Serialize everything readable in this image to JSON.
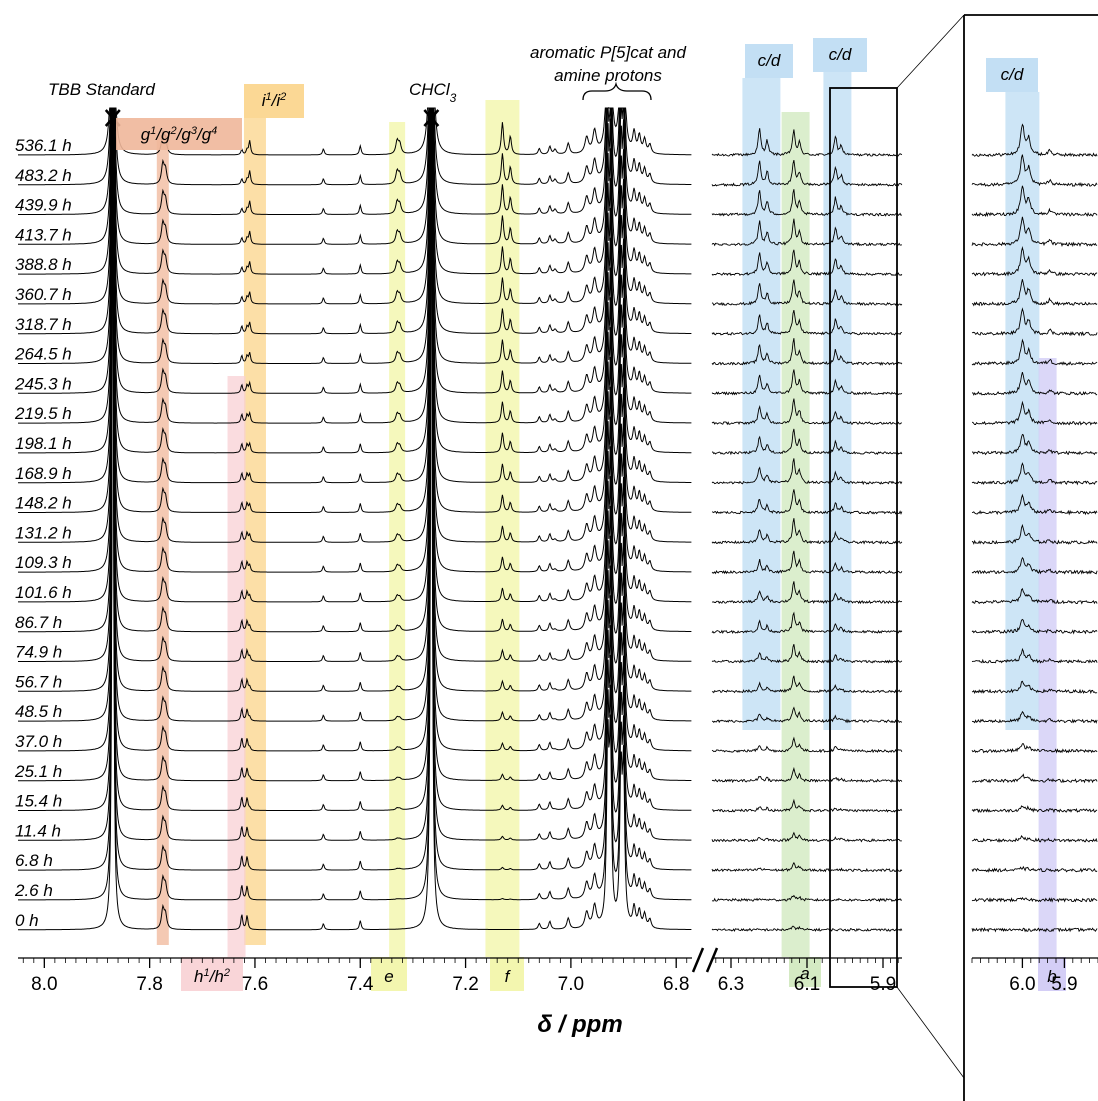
{
  "chart_data": {
    "type": "line",
    "chart_kind": "stacked 1H NMR spectra",
    "xlabel": "δ / ppm",
    "times": [
      "536.1 h",
      "483.2 h",
      "439.9 h",
      "413.7 h",
      "388.8 h",
      "360.7 h",
      "318.7 h",
      "264.5 h",
      "245.3 h",
      "219.5 h",
      "198.1 h",
      "168.9 h",
      "148.2 h",
      "131.2 h",
      "109.3 h",
      "101.6 h",
      "86.7 h",
      "74.9 h",
      "56.7 h",
      "48.5 h",
      "37.0 h",
      "25.1 h",
      "15.4 h",
      "11.4 h",
      "6.8 h",
      "2.6 h",
      "0 h"
    ],
    "panels": [
      {
        "name": "main",
        "xlim": [
          8.05,
          6.77
        ],
        "ticks": [
          8.0,
          7.8,
          7.6,
          7.4,
          7.2,
          7.0,
          6.8
        ],
        "tick_labels": [
          "8.0",
          "7.8",
          "7.6",
          "7.4",
          "7.2",
          "7.0",
          "6.8"
        ]
      },
      {
        "name": "middle",
        "xlim": [
          6.35,
          5.85
        ],
        "ticks": [
          6.3,
          6.1,
          5.9
        ],
        "tick_labels": [
          "6.3",
          "6.1",
          "5.9"
        ]
      },
      {
        "name": "zoom",
        "xlim": [
          6.12,
          5.82
        ],
        "ticks": [
          6.0,
          5.9
        ],
        "tick_labels": [
          "6.0",
          "5.9"
        ]
      }
    ],
    "annotations": [
      {
        "text": "TBB Standard",
        "ppm": 7.87
      },
      {
        "text": "CHCl3",
        "ppm": 7.265
      },
      {
        "text": "aromatic P[5]cat and amine protons",
        "ppm": 6.92
      }
    ],
    "peak_groups": [
      {
        "label": "g1/g2/g3/g4",
        "ppm": 7.775,
        "color": "#f0b79a",
        "panel": "main"
      },
      {
        "label": "i1/i2",
        "ppm": 7.6,
        "color": "#fbd48a",
        "panel": "main"
      },
      {
        "label": "h1/h2",
        "ppm": 7.635,
        "color": "#f8d0d4",
        "panel": "main"
      },
      {
        "label": "e",
        "ppm": 7.33,
        "color": "#f2f5a6",
        "panel": "main"
      },
      {
        "label": "f",
        "ppm": 7.13,
        "color": "#f2f5a6",
        "panel": "main"
      },
      {
        "label": "c/d",
        "ppm": 6.22,
        "color": "#bcdcf3",
        "panel": "middle"
      },
      {
        "label": "a",
        "ppm": 6.13,
        "color": "#cfe8bc",
        "panel": "middle"
      },
      {
        "label": "c/d",
        "ppm": 6.02,
        "color": "#bcdcf3",
        "panel": "middle"
      },
      {
        "label": "c/d",
        "ppm": 6.0,
        "color": "#bcdcf3",
        "panel": "zoom"
      },
      {
        "label": "b",
        "ppm": 5.94,
        "color": "#cfc9f5",
        "panel": "zoom"
      }
    ]
  }
}
